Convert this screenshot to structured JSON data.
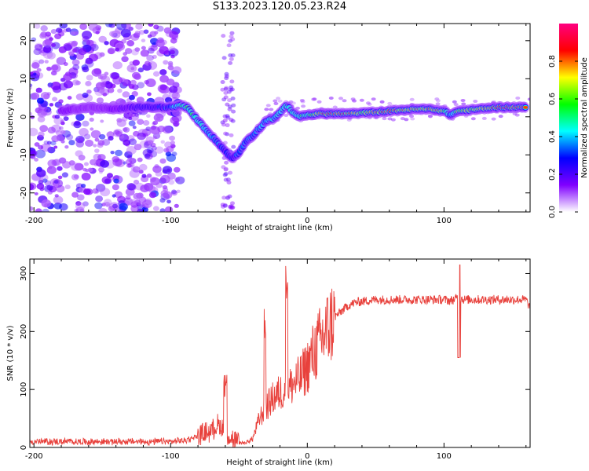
{
  "title": "S133.2023.120.05.23.R24",
  "chart_data": [
    {
      "type": "heatmap",
      "xlabel": "Height of straight line (km)",
      "ylabel": "Frequency (Hz)",
      "xlim": [
        -203,
        163
      ],
      "ylim": [
        -25,
        24.5
      ],
      "xticks": [
        -200,
        -100,
        0,
        100
      ],
      "yticks": [
        -20,
        -10,
        0,
        10,
        20
      ],
      "colorbar": {
        "label": "Normalized spectral amplitude",
        "range": [
          0,
          1
        ],
        "ticks": [
          0.0,
          0.2,
          0.4,
          0.6,
          0.8
        ],
        "colors": [
          "#ffffff",
          "#8000ff",
          "#0000ff",
          "#00ffff",
          "#00ff00",
          "#ffff00",
          "#ff0000",
          "#ff0080"
        ]
      },
      "ridge": [
        {
          "x": -180,
          "y": 1.5,
          "a": 0.15
        },
        {
          "x": -160,
          "y": 2.5,
          "a": 0.12
        },
        {
          "x": -140,
          "y": 2.0,
          "a": 0.15
        },
        {
          "x": -130,
          "y": 2.5,
          "a": 0.2
        },
        {
          "x": -100,
          "y": 2.5,
          "a": 0.35
        },
        {
          "x": -92,
          "y": 3.0,
          "a": 0.55
        },
        {
          "x": -88,
          "y": 2.5,
          "a": 0.6
        },
        {
          "x": -80,
          "y": -1.0,
          "a": 0.5
        },
        {
          "x": -75,
          "y": -3.0,
          "a": 0.45
        },
        {
          "x": -70,
          "y": -5.0,
          "a": 0.4
        },
        {
          "x": -65,
          "y": -7.0,
          "a": 0.35
        },
        {
          "x": -60,
          "y": -9.0,
          "a": 0.3
        },
        {
          "x": -55,
          "y": -11.0,
          "a": 0.3
        },
        {
          "x": -50,
          "y": -9.5,
          "a": 0.35
        },
        {
          "x": -45,
          "y": -6.5,
          "a": 0.35
        },
        {
          "x": -40,
          "y": -5.0,
          "a": 0.35
        },
        {
          "x": -35,
          "y": -3.0,
          "a": 0.4
        },
        {
          "x": -30,
          "y": -1.0,
          "a": 0.4
        },
        {
          "x": -25,
          "y": -0.5,
          "a": 0.45
        },
        {
          "x": -20,
          "y": 1.0,
          "a": 0.45
        },
        {
          "x": -15,
          "y": 3.0,
          "a": 0.5
        },
        {
          "x": -10,
          "y": 1.0,
          "a": 0.5
        },
        {
          "x": -5,
          "y": 0.0,
          "a": 0.55
        },
        {
          "x": 0,
          "y": 0.5,
          "a": 0.55
        },
        {
          "x": 10,
          "y": 0.8,
          "a": 0.85
        },
        {
          "x": 20,
          "y": 0.8,
          "a": 0.88
        },
        {
          "x": 30,
          "y": 0.8,
          "a": 0.85
        },
        {
          "x": 40,
          "y": 1.0,
          "a": 0.65
        },
        {
          "x": 50,
          "y": 1.2,
          "a": 0.8
        },
        {
          "x": 60,
          "y": 1.5,
          "a": 0.85
        },
        {
          "x": 70,
          "y": 1.8,
          "a": 0.8
        },
        {
          "x": 80,
          "y": 2.0,
          "a": 0.75
        },
        {
          "x": 90,
          "y": 2.0,
          "a": 0.85
        },
        {
          "x": 100,
          "y": 1.5,
          "a": 0.7
        },
        {
          "x": 105,
          "y": 0.5,
          "a": 0.35
        },
        {
          "x": 110,
          "y": 1.5,
          "a": 0.7
        },
        {
          "x": 120,
          "y": 1.8,
          "a": 0.7
        },
        {
          "x": 130,
          "y": 2.2,
          "a": 0.8
        },
        {
          "x": 140,
          "y": 2.5,
          "a": 0.9
        },
        {
          "x": 150,
          "y": 2.5,
          "a": 0.92
        },
        {
          "x": 160,
          "y": 2.5,
          "a": 0.9
        }
      ]
    },
    {
      "type": "line",
      "xlabel": "Height of straight line (km)",
      "ylabel": "SNR (10 * v/v)",
      "xlim": [
        -203,
        163
      ],
      "ylim": [
        0,
        325
      ],
      "xticks": [
        -200,
        -100,
        0,
        100
      ],
      "yticks": [
        0,
        100,
        200,
        300
      ],
      "series": [
        {
          "color": "#e8413c",
          "x": [
            -203,
            -180,
            -160,
            -140,
            -120,
            -100,
            -90,
            -80,
            -75,
            -70,
            -65,
            -60,
            -55,
            -50,
            -45,
            -40,
            -35,
            -30,
            -25,
            -20,
            -15,
            -10,
            -5,
            0,
            5,
            10,
            15,
            20,
            25,
            30,
            35,
            40,
            50,
            60,
            70,
            80,
            90,
            100,
            105,
            110,
            115,
            120,
            130,
            140,
            150,
            160,
            163
          ],
          "y": [
            10,
            10,
            10,
            10,
            10,
            10,
            12,
            20,
            25,
            30,
            40,
            30,
            15,
            8,
            8,
            15,
            50,
            70,
            85,
            95,
            100,
            110,
            120,
            140,
            165,
            185,
            205,
            225,
            235,
            245,
            250,
            252,
            255,
            255,
            255,
            255,
            255,
            255,
            253,
            258,
            255,
            255,
            255,
            255,
            255,
            255,
            240
          ]
        }
      ]
    }
  ]
}
